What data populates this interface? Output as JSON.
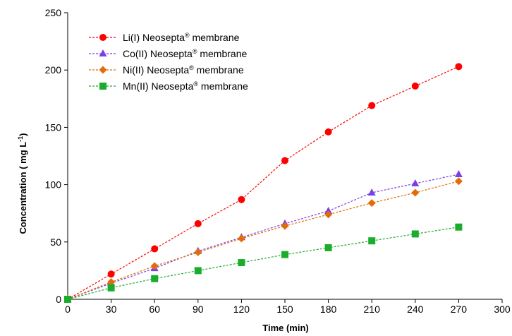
{
  "chart_data": {
    "type": "line",
    "title": "",
    "xlabel": "Time (min)",
    "ylabel_main": "Concentration ( mg L",
    "ylabel_sup": "-1",
    "ylabel_close": ")",
    "xlim": [
      0,
      300
    ],
    "ylim": [
      0,
      250
    ],
    "xticks": [
      0,
      30,
      60,
      90,
      120,
      150,
      180,
      210,
      240,
      270,
      300
    ],
    "yticks": [
      0,
      50,
      100,
      150,
      200,
      250
    ],
    "grid": false,
    "legend_position": "top-left",
    "x": [
      0,
      30,
      60,
      90,
      120,
      150,
      180,
      210,
      240,
      270
    ],
    "series": [
      {
        "name_main": "Li(I) Neosepta",
        "name_sup": "®",
        "name_tail": " membrane",
        "marker": "circle",
        "color": "#ff0000",
        "values": [
          0,
          22,
          44,
          66,
          87,
          121,
          146,
          169,
          186,
          203
        ]
      },
      {
        "name_main": "Co(II) Neosepta",
        "name_sup": "®",
        "name_tail": " membrane",
        "marker": "triangle",
        "color": "#7b3fe4",
        "values": [
          0,
          14,
          27,
          42,
          54,
          66,
          77,
          93,
          101,
          109
        ]
      },
      {
        "name_main": "Ni(II) Neosepta",
        "name_sup": "®",
        "name_tail": " membrane",
        "marker": "diamond",
        "color": "#e36c0a",
        "values": [
          0,
          15,
          29,
          41,
          53,
          64,
          74,
          84,
          93,
          103
        ]
      },
      {
        "name_main": "Mn(II) Neosepta",
        "name_sup": "®",
        "name_tail": " membrane",
        "marker": "square",
        "color": "#1aad2c",
        "values": [
          0,
          10,
          18,
          25,
          32,
          39,
          45,
          51,
          57,
          63
        ]
      }
    ]
  }
}
